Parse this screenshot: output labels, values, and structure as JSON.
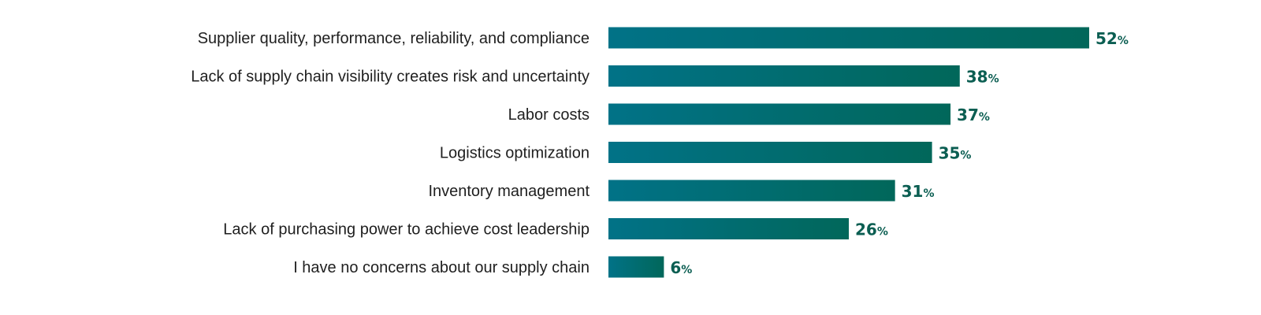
{
  "chart_data": {
    "type": "bar",
    "orientation": "horizontal",
    "categories": [
      "Supplier quality, performance, reliability, and compliance",
      "Lack of supply chain visibility creates risk and uncertainty",
      "Labor costs",
      "Logistics optimization",
      "Inventory management",
      "Lack of purchasing power to achieve cost leadership",
      "I have no concerns about our supply chain"
    ],
    "values": [
      52,
      38,
      37,
      35,
      31,
      26,
      6
    ],
    "value_suffix": "%",
    "title": "",
    "xlabel": "",
    "ylabel": "",
    "xlim": [
      0,
      52
    ],
    "grid": false,
    "legend": "none",
    "colors": {
      "bar_start": "#017287",
      "bar_end": "#01675a",
      "value_label": "#0b5e52"
    }
  }
}
